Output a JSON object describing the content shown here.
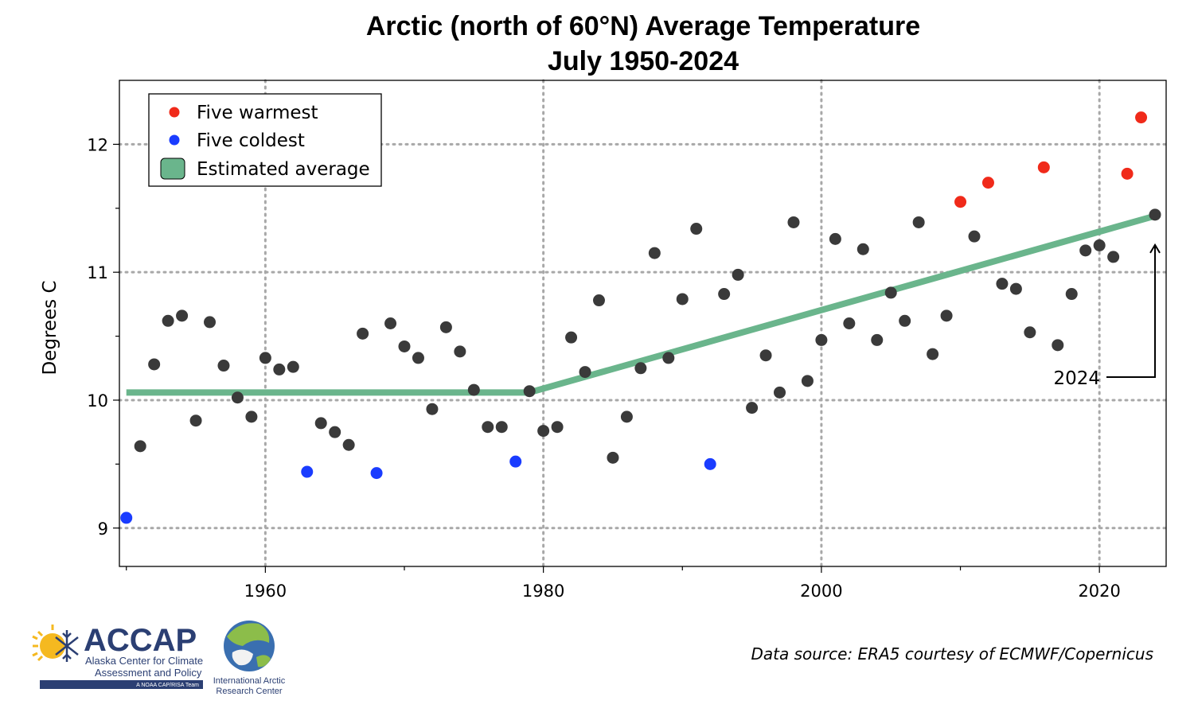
{
  "chart_data": {
    "type": "scatter",
    "title": "Arctic (north of 60°N) Average Temperature",
    "subtitle": "July 1950-2024",
    "xlabel": "",
    "ylabel": "Degrees C",
    "xlim": [
      1949.5,
      2024.8
    ],
    "ylim": [
      8.7,
      12.5
    ],
    "x_ticks": [
      1960,
      1980,
      2000,
      2020
    ],
    "y_ticks": [
      9,
      10,
      11,
      12
    ],
    "grid": true,
    "legend_position": "top-left",
    "legend": [
      "Five warmest",
      "Five coldest",
      "Estimated average"
    ],
    "colors": {
      "normal": "#3a3a3a",
      "warmest": "#f02a1a",
      "coldest": "#1a3cff",
      "trend": "#6ab58c"
    },
    "series": [
      {
        "name": "Five warmest",
        "x": [
          2010,
          2012,
          2016,
          2022,
          2023
        ],
        "y": [
          11.55,
          11.7,
          11.82,
          11.77,
          12.21
        ]
      },
      {
        "name": "Five coldest",
        "x": [
          1950,
          1963,
          1968,
          1978,
          1992
        ],
        "y": [
          9.08,
          9.44,
          9.43,
          9.52,
          9.5
        ]
      },
      {
        "name": "",
        "x": [
          1951,
          1952,
          1953,
          1954,
          1955,
          1956,
          1957,
          1958,
          1959,
          1960,
          1961,
          1962,
          1964,
          1965,
          1966,
          1967,
          1969,
          1970,
          1971,
          1972,
          1973,
          1974,
          1975,
          1976,
          1977,
          1979,
          1980,
          1981,
          1982,
          1983,
          1984,
          1985,
          1986,
          1987,
          1988,
          1989,
          1990,
          1991,
          1993,
          1994,
          1995,
          1996,
          1997,
          1998,
          1999,
          2000,
          2001,
          2002,
          2003,
          2004,
          2005,
          2006,
          2007,
          2008,
          2009,
          2011,
          2013,
          2014,
          2015,
          2017,
          2018,
          2019,
          2020,
          2021,
          2024
        ],
        "y": [
          9.64,
          10.28,
          10.62,
          10.66,
          9.84,
          10.61,
          10.27,
          10.02,
          9.87,
          10.33,
          10.24,
          10.26,
          9.82,
          9.75,
          9.65,
          10.52,
          10.6,
          10.42,
          10.33,
          9.93,
          10.57,
          10.38,
          10.08,
          9.79,
          9.79,
          10.07,
          9.76,
          9.79,
          10.49,
          10.22,
          10.78,
          9.55,
          9.87,
          10.25,
          11.15,
          10.33,
          10.79,
          11.34,
          10.83,
          10.98,
          9.94,
          10.35,
          10.06,
          11.39,
          10.15,
          10.47,
          11.26,
          10.6,
          11.18,
          10.47,
          10.84,
          10.62,
          11.39,
          10.36,
          10.66,
          11.28,
          10.91,
          10.87,
          10.53,
          10.43,
          10.83,
          11.17,
          11.21,
          11.12,
          11.45
        ]
      }
    ],
    "trend": {
      "name": "Estimated average",
      "x": [
        1950,
        1979,
        2024
      ],
      "y": [
        10.06,
        10.06,
        11.44
      ]
    },
    "annotations": [
      {
        "text": "2024",
        "x": 2024,
        "y": 11.45
      }
    ]
  },
  "source_note": "Data source: ERA5 courtesy of ECMWF/Copernicus",
  "logos": {
    "accap": {
      "name": "ACCAP",
      "line1": "Alaska Center for Climate",
      "line2": "Assessment and Policy",
      "tagline": "A NOAA CAP/RISA Team"
    },
    "iarc": {
      "line1": "International Arctic",
      "line2": "Research Center"
    }
  }
}
